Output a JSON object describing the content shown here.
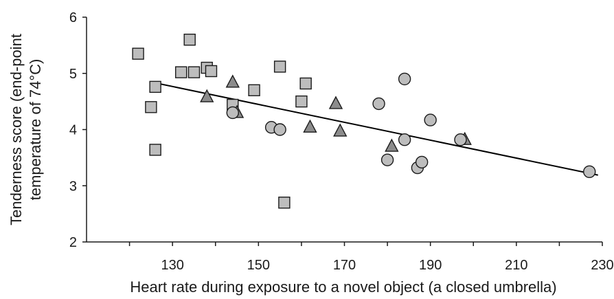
{
  "chart_data": {
    "type": "scatter",
    "xlabel": "Heart rate during exposure to a novel object (a closed umbrella)",
    "ylabel_lines": [
      "Tenderness score (end-point",
      "temperature of 74°C)"
    ],
    "xlim": [
      110,
      230
    ],
    "ylim": [
      2,
      6
    ],
    "xticks": [
      "130",
      "150",
      "170",
      "190",
      "210",
      "230"
    ],
    "yticks": [
      "2",
      "3",
      "4",
      "5",
      "6"
    ],
    "grid": false,
    "marker_fill": "#bdbdbd",
    "triangle_fill": "#8c8c8c",
    "marker_stroke": "#1a1a1a",
    "series": [
      {
        "marker": "square",
        "points": [
          [
            122,
            5.35
          ],
          [
            125,
            4.4
          ],
          [
            126,
            4.76
          ],
          [
            126,
            3.64
          ],
          [
            132,
            5.02
          ],
          [
            134,
            5.6
          ],
          [
            135,
            5.02
          ],
          [
            138,
            5.1
          ],
          [
            139,
            5.04
          ],
          [
            144,
            4.44
          ],
          [
            149,
            4.7
          ],
          [
            155,
            5.12
          ],
          [
            156,
            2.7
          ],
          [
            160,
            4.5
          ],
          [
            161,
            4.82
          ]
        ]
      },
      {
        "marker": "triangle",
        "points": [
          [
            138,
            4.58
          ],
          [
            144,
            4.84
          ],
          [
            145,
            4.3
          ],
          [
            162,
            4.04
          ],
          [
            168,
            4.46
          ],
          [
            169,
            3.97
          ],
          [
            181,
            3.7
          ],
          [
            198,
            3.82
          ]
        ]
      },
      {
        "marker": "circle",
        "points": [
          [
            144,
            4.3
          ],
          [
            153,
            4.04
          ],
          [
            155,
            4.0
          ],
          [
            178,
            4.46
          ],
          [
            180,
            3.46
          ],
          [
            184,
            4.9
          ],
          [
            184,
            3.82
          ],
          [
            187,
            3.32
          ],
          [
            188,
            3.42
          ],
          [
            190,
            4.17
          ],
          [
            197,
            3.82
          ],
          [
            227,
            3.25
          ]
        ]
      }
    ],
    "trendline": [
      [
        126,
        4.83
      ],
      [
        229,
        3.19
      ]
    ]
  }
}
